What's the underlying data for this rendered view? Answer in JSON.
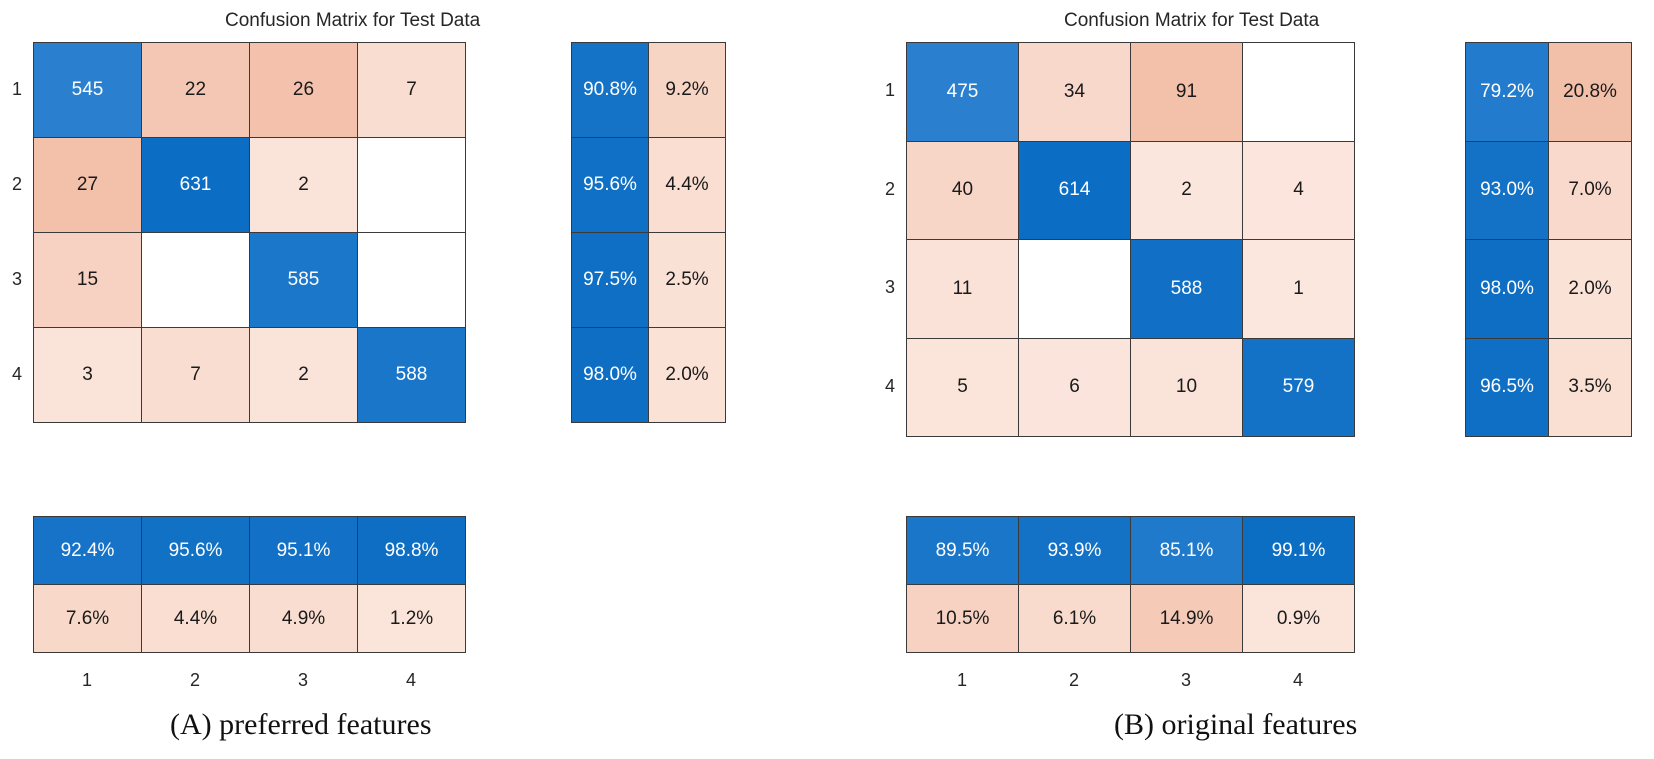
{
  "colors": {
    "diag_high": "#0b6dc3",
    "off_low": "#fbe3d9",
    "off_mid": "#f3c1ab",
    "empty": "#ffffff",
    "light_text": "#ffffff",
    "dark_text": "#1a1a1a"
  },
  "chart_data": [
    {
      "type": "heatmap",
      "title": "Confusion Matrix for Test Data",
      "caption": "(A) preferred features",
      "classes": [
        "1",
        "2",
        "3",
        "4"
      ],
      "matrix": [
        [
          545,
          22,
          26,
          7
        ],
        [
          27,
          631,
          2,
          null
        ],
        [
          15,
          null,
          585,
          null
        ],
        [
          3,
          7,
          2,
          588
        ]
      ],
      "row_summary": [
        [
          "90.8%",
          "9.2%"
        ],
        [
          "95.6%",
          "4.4%"
        ],
        [
          "97.5%",
          "2.5%"
        ],
        [
          "98.0%",
          "2.0%"
        ]
      ],
      "col_summary": [
        [
          "92.4%",
          "95.6%",
          "95.1%",
          "98.8%"
        ],
        [
          "7.6%",
          "4.4%",
          "4.9%",
          "1.2%"
        ]
      ]
    },
    {
      "type": "heatmap",
      "title": "Confusion Matrix for Test Data",
      "caption": "(B) original  features",
      "classes": [
        "1",
        "2",
        "3",
        "4"
      ],
      "matrix": [
        [
          475,
          34,
          91,
          null
        ],
        [
          40,
          614,
          2,
          4
        ],
        [
          11,
          null,
          588,
          1
        ],
        [
          5,
          6,
          10,
          579
        ]
      ],
      "row_summary": [
        [
          "79.2%",
          "20.8%"
        ],
        [
          "93.0%",
          "7.0%"
        ],
        [
          "98.0%",
          "2.0%"
        ],
        [
          "96.5%",
          "3.5%"
        ]
      ],
      "col_summary": [
        [
          "89.5%",
          "93.9%",
          "85.1%",
          "99.1%"
        ],
        [
          "10.5%",
          "6.1%",
          "14.9%",
          "0.9%"
        ]
      ]
    }
  ]
}
